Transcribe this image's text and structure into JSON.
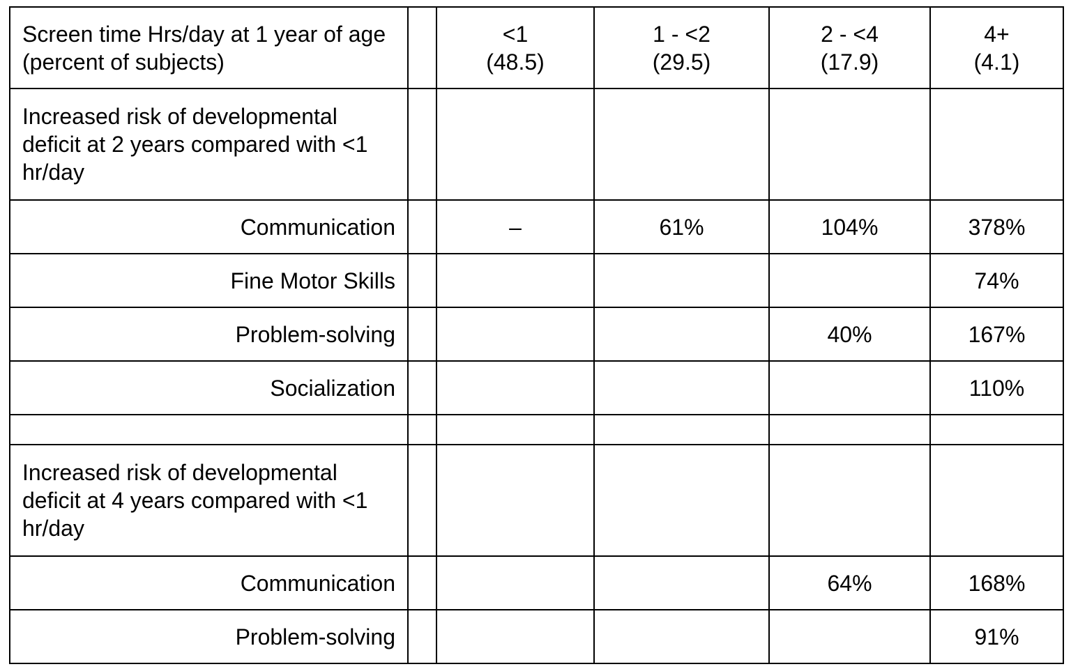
{
  "header": {
    "label": "Screen time Hrs/day at 1 year of age (percent of subjects)",
    "columns": [
      {
        "range": "<1",
        "percent": "(48.5)"
      },
      {
        "range": "1 - <2",
        "percent": "(29.5)"
      },
      {
        "range": "2 - <4",
        "percent": "(17.9)"
      },
      {
        "range": "4+",
        "percent": "(4.1)"
      }
    ]
  },
  "sections": [
    {
      "title": "Increased risk of developmental deficit at 2 years compared with <1 hr/day",
      "rows": [
        {
          "label": "Communication",
          "values": [
            "–",
            "61%",
            "104%",
            "378%"
          ]
        },
        {
          "label": "Fine Motor Skills",
          "values": [
            "",
            "",
            "",
            "74%"
          ]
        },
        {
          "label": "Problem-solving",
          "values": [
            "",
            "",
            "40%",
            "167%"
          ]
        },
        {
          "label": "Socialization",
          "values": [
            "",
            "",
            "",
            "110%"
          ]
        }
      ]
    },
    {
      "title": "Increased risk of developmental deficit at 4 years compared with <1 hr/day",
      "rows": [
        {
          "label": "Communication",
          "values": [
            "",
            "",
            "64%",
            "168%"
          ]
        },
        {
          "label": "Problem-solving",
          "values": [
            "",
            "",
            "",
            "91%"
          ]
        }
      ]
    }
  ]
}
